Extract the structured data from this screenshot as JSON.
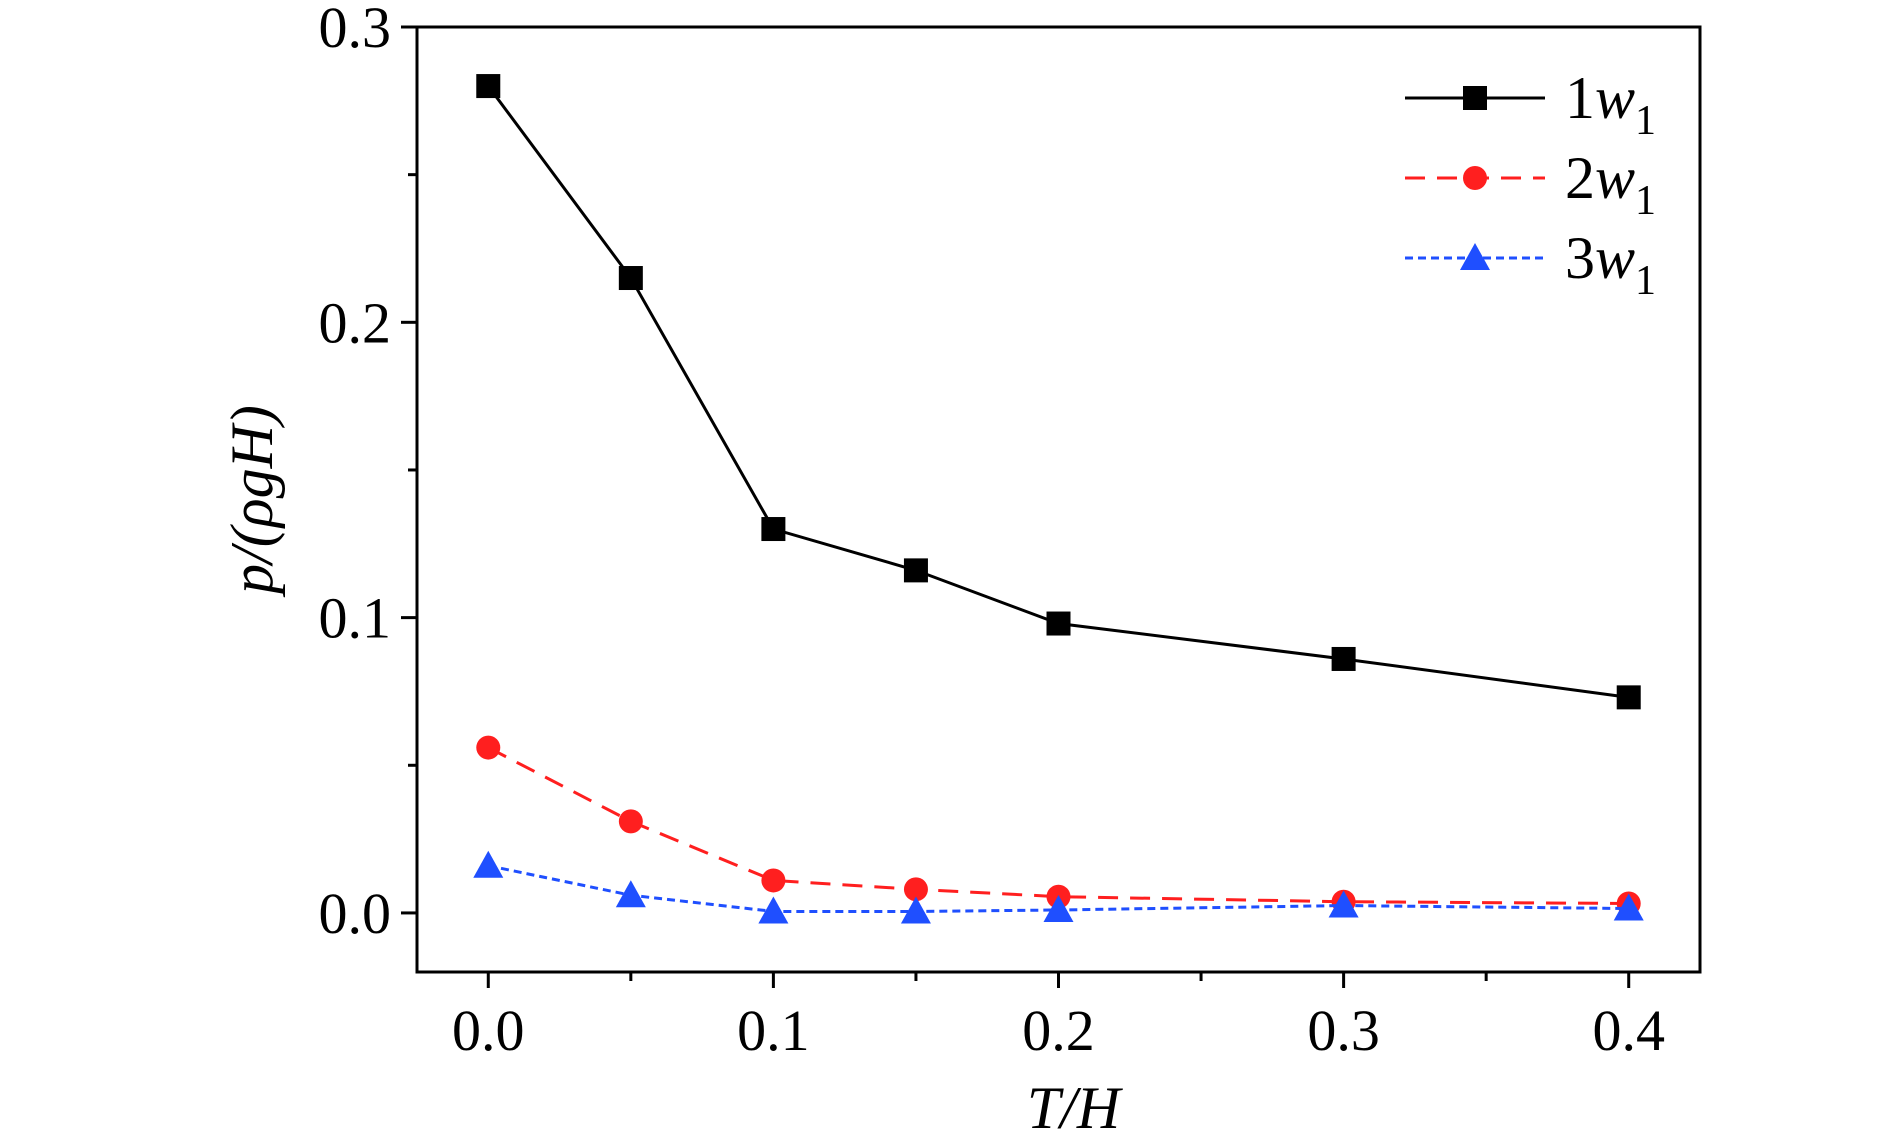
{
  "chart_data": {
    "type": "line",
    "xlabel": "T/H",
    "ylabel": "p/(ρgH)",
    "xlim": [
      -0.025,
      0.425
    ],
    "ylim": [
      -0.02,
      0.3
    ],
    "grid": false,
    "legend_position": "top-right",
    "x_tick_labels": [
      "0.0",
      "0.1",
      "0.2",
      "0.3",
      "0.4"
    ],
    "y_tick_labels": [
      "0.0",
      "0.1",
      "0.2",
      "0.3"
    ],
    "x_ticks": [
      0.0,
      0.1,
      0.2,
      0.3,
      0.4
    ],
    "x_minor_ticks": [
      0.05,
      0.15,
      0.25,
      0.35
    ],
    "y_ticks": [
      0.0,
      0.1,
      0.2,
      0.3
    ],
    "y_minor_ticks": [
      0.05,
      0.15,
      0.25
    ],
    "x": [
      0.0,
      0.05,
      0.1,
      0.15,
      0.2,
      0.3,
      0.4
    ],
    "series": [
      {
        "name": "1w1",
        "legend_main": "1",
        "legend_italic": "w",
        "legend_sub": "1",
        "color": "#000000",
        "dash": "solid",
        "marker": "square",
        "values": [
          0.28,
          0.215,
          0.13,
          0.116,
          0.098,
          0.086,
          0.073
        ]
      },
      {
        "name": "2w1",
        "legend_main": "2",
        "legend_italic": "w",
        "legend_sub": "1",
        "color": "#ff1f1f",
        "dash": "dashed",
        "marker": "circle",
        "values": [
          0.056,
          0.031,
          0.011,
          0.008,
          0.0055,
          0.0038,
          0.0032
        ]
      },
      {
        "name": "3w1",
        "legend_main": "3",
        "legend_italic": "w",
        "legend_sub": "1",
        "color": "#1f4fff",
        "dash": "dotted",
        "marker": "triangle",
        "values": [
          0.016,
          0.006,
          0.0005,
          0.0005,
          0.001,
          0.0025,
          0.0015
        ]
      }
    ]
  }
}
